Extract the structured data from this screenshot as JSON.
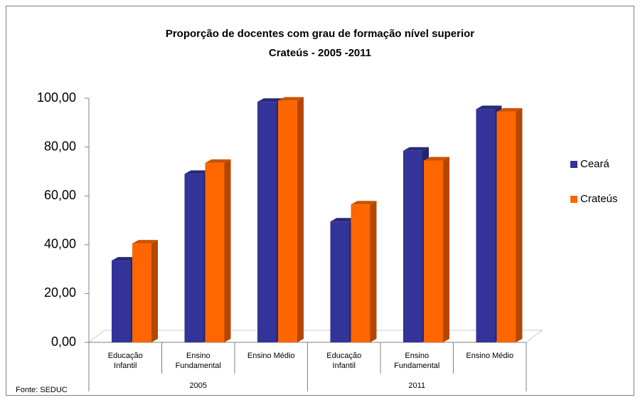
{
  "chart_data": {
    "type": "bar3d",
    "title": "Proporção de docentes com grau de formação nível superior",
    "subtitle": "Crateús - 2005 -2011",
    "categories": [
      "Educação Infantil",
      "Ensino Fundamental",
      "Ensino Médio",
      "Educação Infantil",
      "Ensino Fundamental",
      "Ensino Médio"
    ],
    "groups": [
      "2005",
      "2011"
    ],
    "series": [
      {
        "name": "Ceará",
        "color": "#333399",
        "values": [
          33.5,
          69,
          98.5,
          49.5,
          78.5,
          95.5
        ]
      },
      {
        "name": "Crateús",
        "color": "#ff6600",
        "values": [
          40.5,
          73.5,
          99,
          56.5,
          74.5,
          94.5
        ]
      }
    ],
    "ylim": [
      0,
      100
    ],
    "yticks": [
      {
        "value": 0,
        "label": "0,00"
      },
      {
        "value": 20,
        "label": "20,00"
      },
      {
        "value": 40,
        "label": "40,00"
      },
      {
        "value": 60,
        "label": "60,00"
      },
      {
        "value": 80,
        "label": "80,00"
      },
      {
        "value": 100,
        "label": "100,00"
      }
    ],
    "source": "Fonte: SEDUC",
    "legend": "right"
  }
}
